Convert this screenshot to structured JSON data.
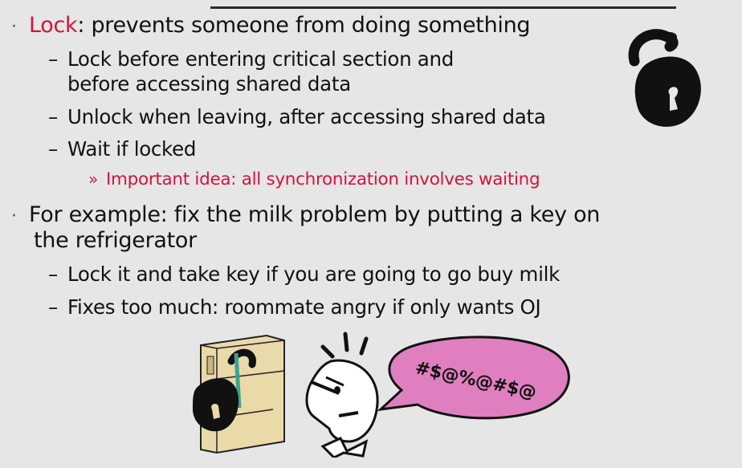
{
  "bullets": {
    "b1": {
      "marker": "·",
      "term": "Lock",
      "rest": ": prevents someone from doing something",
      "sub": [
        {
          "marker": "–",
          "text": "Lock before entering critical section and"
        },
        {
          "text": "before accessing shared data"
        },
        {
          "marker": "–",
          "text": "Unlock when leaving, after accessing shared data"
        },
        {
          "marker": "–",
          "text": "Wait if locked"
        }
      ],
      "subsub": {
        "marker": "»",
        "text": "Important idea: all synchronization involves waiting"
      }
    },
    "b2": {
      "marker": "·",
      "line1": "For example: fix the milk problem by putting a key on",
      "line2": "the refrigerator",
      "sub": [
        {
          "marker": "–",
          "text": "Lock it and take key if you are going to go buy milk"
        },
        {
          "marker": "–",
          "text": "Fixes too much: roommate angry if only wants OJ"
        }
      ]
    }
  },
  "speech_bubble": {
    "text": "#$@%@#$@"
  },
  "colors": {
    "accent": "#d1143f",
    "bubble": "#e07fbf",
    "fridge": "#ead9a9"
  }
}
